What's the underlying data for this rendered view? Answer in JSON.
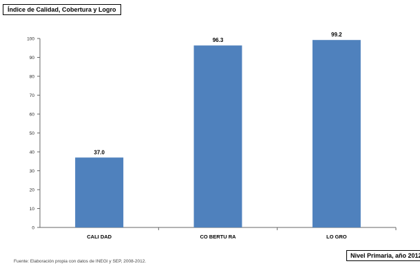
{
  "header": {
    "title": "Índice de Calidad, Cobertura y Logro"
  },
  "footer": {
    "source": "Fuente: Elaboración propia con datos de INEGI y SEP, 2008-2012.",
    "corner_label": "Nivel Primaria, año 2012"
  },
  "chart_data": {
    "type": "bar",
    "title": "Índice de Calidad, Cobertura y Logro",
    "categories": [
      "CALIDAD",
      "COBERTURA",
      "LOGRO"
    ],
    "category_labels": [
      "CALI DAD",
      "CO BERTU RA",
      "LO GRO"
    ],
    "values": [
      37.0,
      96.3,
      99.2
    ],
    "data_labels": [
      "37.0",
      "96.3",
      "99.2"
    ],
    "ylim": [
      0,
      100
    ],
    "yticks": [
      0,
      10,
      20,
      30,
      40,
      50,
      60,
      70,
      80,
      90,
      100
    ],
    "grid": false,
    "legend": "none",
    "bar_color": "#4f81bd"
  }
}
